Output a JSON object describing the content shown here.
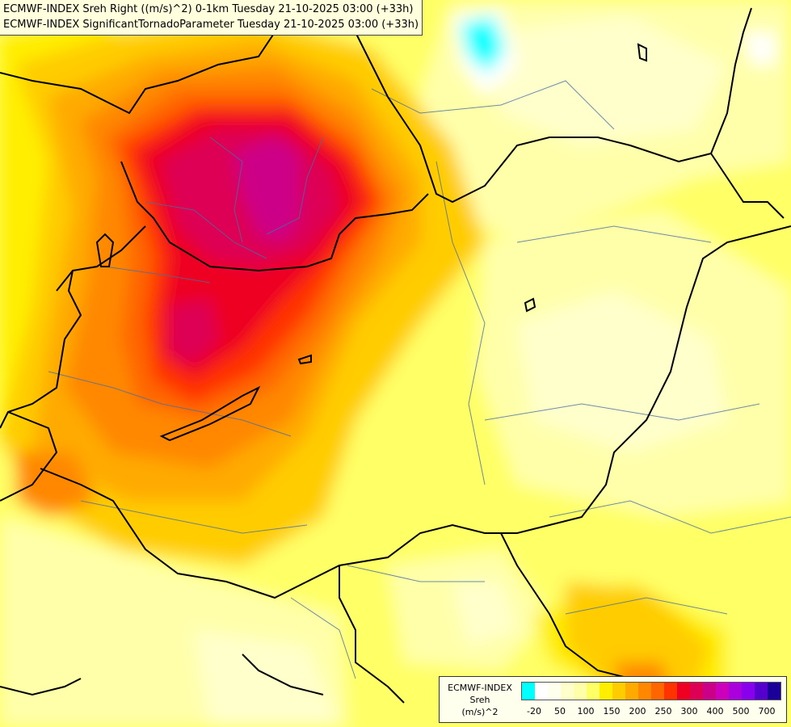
{
  "title": {
    "line1": "ECMWF-INDEX Sreh Right ((m/s)^2) 0-1km Tuesday 21-10-2025 03:00 (+33h)",
    "line2": "ECMWF-INDEX SignificantTornadoParameter Tuesday 21-10-2025 03:00 (+33h)"
  },
  "legend": {
    "model": "ECMWF-INDEX",
    "variable": "Sreh",
    "unit": "(m/s)^2",
    "colors": [
      "#00ffff",
      "#ffffff",
      "#ffffee",
      "#ffffcc",
      "#ffffaa",
      "#ffff66",
      "#ffee00",
      "#ffcc00",
      "#ffaa00",
      "#ff8800",
      "#ff6600",
      "#ff3300",
      "#ee0022",
      "#dd0055",
      "#cc0088",
      "#cc00bb",
      "#aa00dd",
      "#8800ee",
      "#5500cc",
      "#1a0099"
    ],
    "ticks": [
      "-20",
      "50",
      "100",
      "150",
      "200",
      "250",
      "300",
      "400",
      "500",
      "700"
    ]
  }
}
